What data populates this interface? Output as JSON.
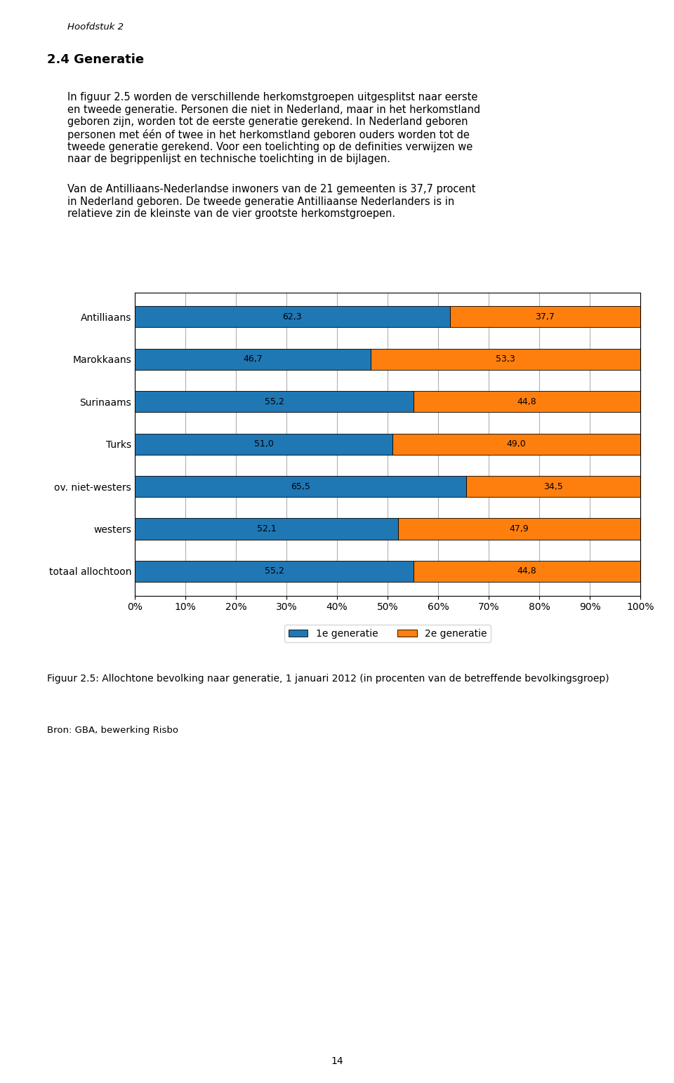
{
  "chart_data": {
    "type": "bar",
    "orientation": "horizontal",
    "stacked": true,
    "title": "Figuur 2.5: Allochtone bevolking naar generatie, 1 januari 2012 (in procenten van de betreffende bevolkingsgroep)",
    "categories": [
      "Antilliaans",
      "Marokkaans",
      "Surinaams",
      "Turks",
      "ov. niet-westers",
      "westers",
      "totaal allochtoon"
    ],
    "series": [
      {
        "name": "1e generatie",
        "values": [
          62.3,
          46.7,
          55.2,
          51.0,
          65.5,
          52.1,
          55.2
        ],
        "value_labels": [
          "62,3",
          "46,7",
          "55,2",
          "51,0",
          "65,5",
          "52,1",
          "55,2"
        ]
      },
      {
        "name": "2e generatie",
        "values": [
          37.7,
          53.3,
          44.8,
          49.0,
          34.5,
          47.9,
          44.8
        ],
        "value_labels": [
          "37,7",
          "53,3",
          "44,8",
          "49,0",
          "34,5",
          "47,9",
          "44,8"
        ]
      }
    ],
    "xlim": [
      0,
      100
    ],
    "xticks": [
      {
        "value": 0,
        "label": "0%"
      },
      {
        "value": 10,
        "label": "10%"
      },
      {
        "value": 20,
        "label": "20%"
      },
      {
        "value": 30,
        "label": "30%"
      },
      {
        "value": 40,
        "label": "40%"
      },
      {
        "value": 50,
        "label": "50%"
      },
      {
        "value": 60,
        "label": "60%"
      },
      {
        "value": 70,
        "label": "70%"
      },
      {
        "value": 80,
        "label": "80%"
      },
      {
        "value": 90,
        "label": "90%"
      },
      {
        "value": 100,
        "label": "100%"
      }
    ],
    "grid": true,
    "legend": "upper center",
    "data_labels": true,
    "annotations": [
      "Hoofdstuk 2",
      "2.4 Generatie",
      "In figuur 2.5 worden de verschillende herkomstgroepen uitgesplitst naar eerste\nen tweede generatie. Personen die niet in Nederland, maar in het herkomstland\ngeboren zijn, worden tot de eerste generatie gerekend. In Nederland geboren\npersonen met één of twee in het herkomstland geboren ouders worden tot de\ntweede generatie gerekend. Voor een toelichting op de definities verwijzen we\nnaar de begrippenlijst en technische toelichting in de bijlagen.",
      "Van de Antilliaans-Nederlandse inwoners van de 21 gemeenten is 37,7 procent\nin Nederland geboren. De tweede generatie Antilliaanse Nederlanders is in\nrelatieve zin de kleinste van de vier grootste herkomstgroepen.",
      "Bron: GBA, bewerking Risbo",
      "14"
    ]
  }
}
